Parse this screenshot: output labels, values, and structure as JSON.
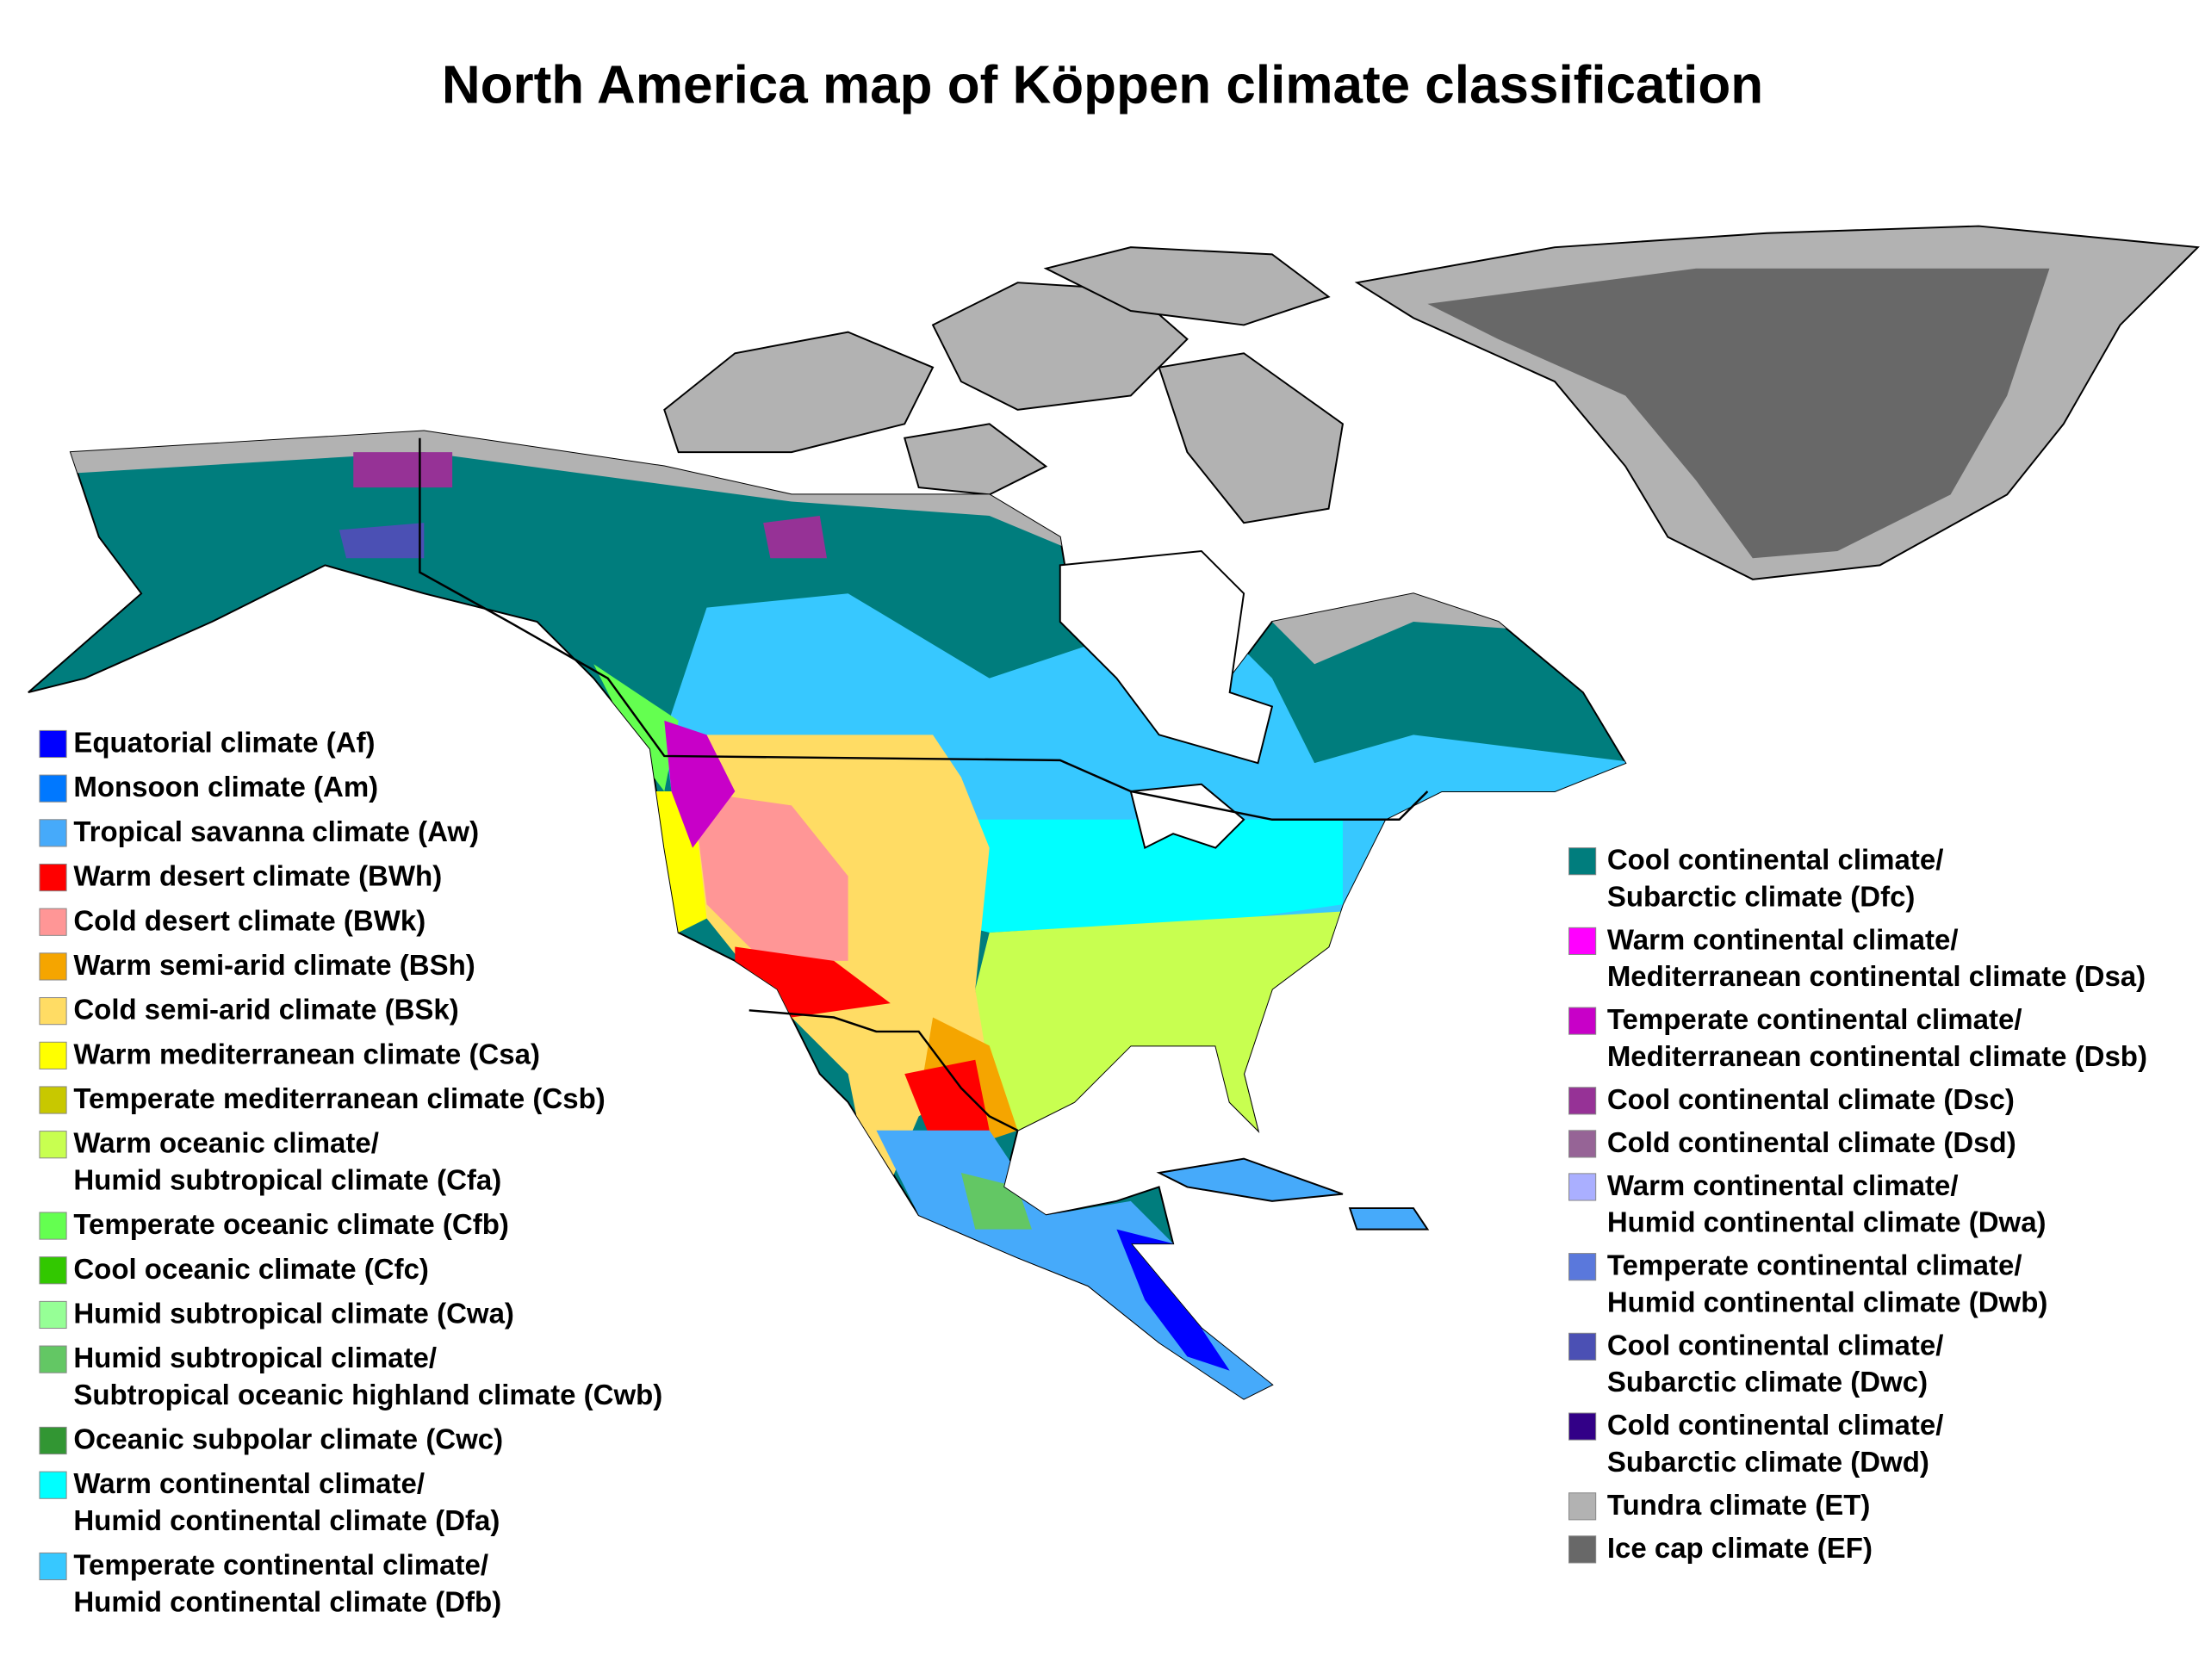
{
  "title": "North America map of Köppen climate classification",
  "legend_left": [
    {
      "lines": [
        "Equatorial climate (Af)"
      ],
      "color": "#0000ff"
    },
    {
      "lines": [
        "Monsoon climate (Am)"
      ],
      "color": "#0078ff"
    },
    {
      "lines": [
        "Tropical savanna climate (Aw)"
      ],
      "color": "#46aafa"
    },
    {
      "lines": [
        "Warm desert climate (BWh)"
      ],
      "color": "#ff0000"
    },
    {
      "lines": [
        "Cold desert climate (BWk)"
      ],
      "color": "#ff9696"
    },
    {
      "lines": [
        "Warm semi-arid climate (BSh)"
      ],
      "color": "#f5a500"
    },
    {
      "lines": [
        "Cold semi-arid climate (BSk)"
      ],
      "color": "#ffdc64"
    },
    {
      "lines": [
        "Warm mediterranean climate (Csa)"
      ],
      "color": "#ffff00"
    },
    {
      "lines": [
        "Temperate mediterranean climate (Csb)"
      ],
      "color": "#c8c800"
    },
    {
      "lines": [
        "Warm oceanic climate/",
        "Humid subtropical climate (Cfa)"
      ],
      "color": "#c8ff50"
    },
    {
      "lines": [
        "Temperate oceanic climate (Cfb)"
      ],
      "color": "#64ff50"
    },
    {
      "lines": [
        "Cool oceanic climate (Cfc)"
      ],
      "color": "#32c800"
    },
    {
      "lines": [
        "Humid subtropical climate (Cwa)"
      ],
      "color": "#96ff96"
    },
    {
      "lines": [
        "Humid subtropical climate/",
        "Subtropical oceanic highland climate (Cwb)"
      ],
      "color": "#63c764"
    },
    {
      "lines": [
        "Oceanic subpolar climate (Cwc)"
      ],
      "color": "#329633"
    },
    {
      "lines": [
        "Warm continental climate/",
        "Humid continental climate (Dfa)"
      ],
      "color": "#00ffff"
    },
    {
      "lines": [
        "Temperate continental climate/",
        "Humid continental climate (Dfb)"
      ],
      "color": "#37c8ff"
    }
  ],
  "legend_right": [
    {
      "lines": [
        "Cool continental climate/",
        "Subarctic climate (Dfc)"
      ],
      "color": "#007d7d"
    },
    {
      "lines": [
        "Warm continental climate/",
        "Mediterranean continental climate (Dsa)"
      ],
      "color": "#ff00ff"
    },
    {
      "lines": [
        "Temperate continental climate/",
        "Mediterranean continental climate (Dsb)"
      ],
      "color": "#c800c8"
    },
    {
      "lines": [
        "Cool continental climate (Dsc)"
      ],
      "color": "#963296"
    },
    {
      "lines": [
        "Cold continental climate (Dsd)"
      ],
      "color": "#966496"
    },
    {
      "lines": [
        "Warm continental climate/",
        "Humid continental climate (Dwa)"
      ],
      "color": "#aaafff"
    },
    {
      "lines": [
        "Temperate continental climate/",
        "Humid continental climate (Dwb)"
      ],
      "color": "#5a78dc"
    },
    {
      "lines": [
        "Cool continental climate/",
        "Subarctic climate (Dwc)"
      ],
      "color": "#4b50b4"
    },
    {
      "lines": [
        "Cold continental climate/",
        "Subarctic climate (Dwd)"
      ],
      "color": "#320087"
    },
    {
      "lines": [
        "Tundra climate (ET)"
      ],
      "color": "#b2b2b2"
    },
    {
      "lines": [
        "Ice cap climate (EF)"
      ],
      "color": "#686868"
    }
  ]
}
